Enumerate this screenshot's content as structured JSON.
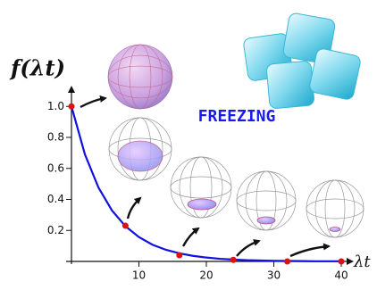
{
  "chart_data": {
    "type": "line",
    "y_label": "f(λt)",
    "x_label": "λt",
    "annotation": "FREEZING",
    "xlim": [
      0,
      42
    ],
    "ylim": [
      0,
      1.1
    ],
    "xticks": [
      10,
      20,
      30,
      40
    ],
    "yticks": [
      0.2,
      0.4,
      0.6,
      0.8,
      {
        "value": 1,
        "label": "1.0"
      }
    ],
    "curve": {
      "color": "#1010e0",
      "x": [
        0,
        2,
        4,
        6,
        8,
        10,
        12,
        14,
        16,
        18,
        20,
        22,
        24,
        26,
        28,
        30,
        32,
        34,
        36,
        38,
        40
      ],
      "values": [
        1,
        0.69,
        0.477,
        0.329,
        0.227,
        0.157,
        0.108,
        0.075,
        0.052,
        0.036,
        0.025,
        0.017,
        0.012,
        0.008,
        0.006,
        0.004,
        0.003,
        0.002,
        0.001,
        0.001,
        0.001
      ]
    },
    "points": {
      "color": "#dd1111",
      "x": [
        0,
        8,
        16,
        24,
        32,
        40
      ],
      "values": [
        1,
        0.23,
        0.04,
        0.01,
        0,
        0
      ]
    }
  }
}
